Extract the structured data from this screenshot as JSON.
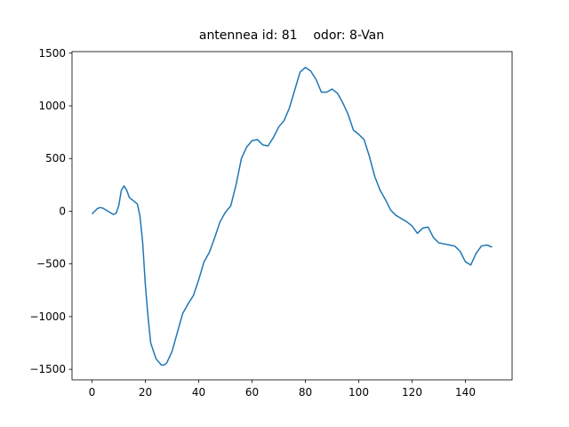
{
  "chart_data": {
    "type": "line",
    "title": "antennea id: 81    odor: 8-Van",
    "x": [
      0,
      2,
      3,
      4,
      6,
      8,
      9,
      10,
      11,
      12,
      13,
      14,
      16,
      17,
      18,
      19,
      20,
      21,
      22,
      24,
      26,
      27,
      28,
      30,
      32,
      34,
      36,
      38,
      40,
      42,
      44,
      46,
      48,
      50,
      52,
      54,
      56,
      58,
      60,
      62,
      64,
      66,
      68,
      70,
      72,
      74,
      76,
      78,
      80,
      82,
      84,
      86,
      88,
      90,
      92,
      94,
      96,
      98,
      100,
      102,
      104,
      106,
      108,
      110,
      112,
      114,
      116,
      118,
      120,
      122,
      124,
      126,
      128,
      130,
      132,
      134,
      136,
      138,
      140,
      142,
      144,
      146,
      148,
      150
    ],
    "series": [
      {
        "color": "#1f77b4",
        "values": [
          -25,
          25,
          35,
          30,
          0,
          -30,
          -20,
          50,
          200,
          240,
          200,
          130,
          90,
          70,
          -50,
          -300,
          -700,
          -1000,
          -1250,
          -1400,
          -1460,
          -1460,
          -1440,
          -1330,
          -1150,
          -970,
          -880,
          -800,
          -650,
          -480,
          -390,
          -250,
          -100,
          -10,
          50,
          250,
          500,
          610,
          670,
          680,
          630,
          620,
          700,
          800,
          860,
          980,
          1150,
          1320,
          1365,
          1330,
          1250,
          1130,
          1130,
          1160,
          1120,
          1030,
          920,
          770,
          730,
          680,
          520,
          330,
          200,
          110,
          10,
          -40,
          -70,
          -100,
          -140,
          -210,
          -160,
          -150,
          -250,
          -300,
          -310,
          -320,
          -330,
          -380,
          -480,
          -510,
          -400,
          -330,
          -320,
          -340
        ]
      }
    ],
    "xlim": [
      -7.5,
      157.5
    ],
    "ylim": [
      -1600,
      1515
    ],
    "xticks": [
      0,
      20,
      40,
      60,
      80,
      100,
      120,
      140
    ],
    "yticks": [
      {
        "value": -1500,
        "label": "−1500"
      },
      {
        "value": -1000,
        "label": "−1000"
      },
      {
        "value": -500,
        "label": "−500"
      },
      0,
      500,
      1000,
      1500
    ]
  }
}
